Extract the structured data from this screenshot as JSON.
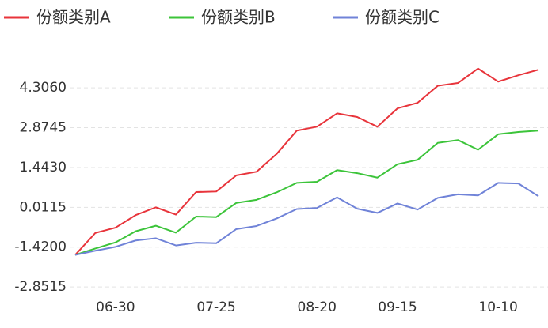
{
  "chart_data": {
    "type": "line",
    "categories": [
      null,
      null,
      "06-30",
      null,
      null,
      null,
      null,
      "07-25",
      null,
      null,
      null,
      null,
      "08-20",
      null,
      null,
      null,
      "09-15",
      null,
      null,
      null,
      null,
      "10-10",
      null,
      null
    ],
    "series": [
      {
        "name": "份额类别A",
        "color": "#e8343b",
        "values": [
          -1.7,
          -0.91,
          -0.72,
          -0.27,
          0.01,
          -0.25,
          0.56,
          0.58,
          1.16,
          1.29,
          1.93,
          2.77,
          2.91,
          3.39,
          3.26,
          2.91,
          3.57,
          3.77,
          4.38,
          4.48,
          5.0,
          4.53,
          4.76,
          4.96
        ]
      },
      {
        "name": "份额类别B",
        "color": "#3cc43a",
        "values": [
          -1.7,
          -1.47,
          -1.25,
          -0.85,
          -0.65,
          -0.9,
          -0.32,
          -0.34,
          0.17,
          0.28,
          0.55,
          0.89,
          0.93,
          1.35,
          1.24,
          1.08,
          1.56,
          1.72,
          2.33,
          2.43,
          2.08,
          2.64,
          2.72,
          2.77
        ]
      },
      {
        "name": "份额类别C",
        "color": "#7083d8",
        "values": [
          -1.7,
          -1.55,
          -1.41,
          -1.18,
          -1.1,
          -1.36,
          -1.26,
          -1.28,
          -0.77,
          -0.66,
          -0.39,
          -0.05,
          -0.01,
          0.37,
          -0.04,
          -0.19,
          0.15,
          -0.07,
          0.35,
          0.48,
          0.44,
          0.89,
          0.87,
          0.41
        ]
      }
    ],
    "ylim": [
      -3.19,
      5.76
    ],
    "yticks": [
      {
        "value": -2.8515,
        "label": "-2.8515"
      },
      {
        "value": -1.42,
        "label": "-1.4200"
      },
      {
        "value": 0.0115,
        "label": "0.0115"
      },
      {
        "value": 1.443,
        "label": "1.4430"
      },
      {
        "value": 2.8745,
        "label": "2.8745"
      },
      {
        "value": 4.306,
        "label": "4.3060"
      }
    ],
    "grid": true,
    "legend": "top"
  }
}
